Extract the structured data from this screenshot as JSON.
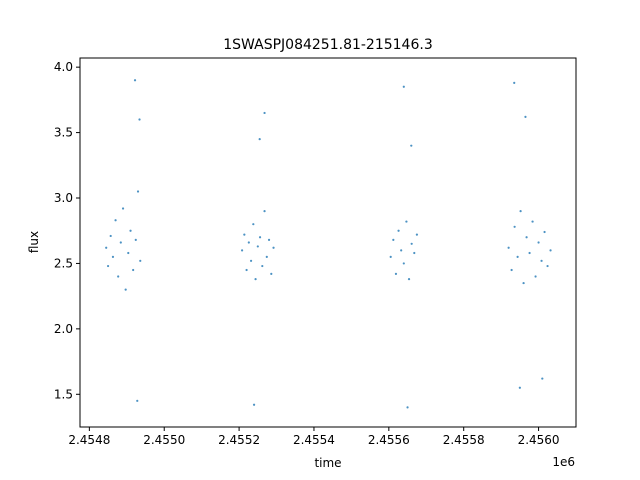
{
  "chart_data": {
    "type": "scatter",
    "title": "1SWASPJ084251.81-215146.3",
    "xlabel": "time",
    "ylabel": "flux",
    "x_offset_label": "1e6",
    "xlim": [
      2454775,
      2456100
    ],
    "ylim": [
      1.25,
      4.07
    ],
    "xticks": [
      2454800,
      2455000,
      2455200,
      2455400,
      2455600,
      2455800,
      2456000
    ],
    "xtick_labels": [
      "2.4548",
      "2.4550",
      "2.4552",
      "2.4554",
      "2.4556",
      "2.4558",
      "2.4560"
    ],
    "yticks": [
      1.5,
      2.0,
      2.5,
      3.0,
      3.5,
      4.0
    ],
    "ytick_labels": [
      "1.5",
      "2.0",
      "2.5",
      "3.0",
      "3.5",
      "4.0"
    ],
    "grid": false,
    "marker_color": "#1f77b4",
    "series": [
      {
        "x": [
          2454845,
          2454850,
          2454857,
          2454863,
          2454870,
          2454877,
          2454884,
          2454890,
          2454897,
          2454904,
          2454910,
          2454917,
          2454924,
          2454930,
          2454936,
          2454922,
          2454928,
          2454934
        ],
        "y": [
          2.62,
          2.48,
          2.71,
          2.55,
          2.83,
          2.4,
          2.66,
          2.92,
          2.3,
          2.58,
          2.75,
          2.45,
          2.68,
          3.05,
          2.52,
          3.9,
          1.45,
          3.6
        ]
      },
      {
        "x": [
          2455208,
          2455214,
          2455220,
          2455226,
          2455232,
          2455238,
          2455244,
          2455250,
          2455256,
          2455262,
          2455268,
          2455274,
          2455280,
          2455286,
          2455292,
          2455255,
          2455268,
          2455240
        ],
        "y": [
          2.6,
          2.72,
          2.45,
          2.66,
          2.52,
          2.8,
          2.38,
          2.63,
          2.7,
          2.48,
          2.9,
          2.55,
          2.68,
          2.42,
          2.62,
          3.45,
          3.65,
          1.42
        ]
      },
      {
        "x": [
          2455605,
          2455612,
          2455619,
          2455626,
          2455633,
          2455640,
          2455647,
          2455654,
          2455661,
          2455668,
          2455675,
          2455640,
          2455650,
          2455660
        ],
        "y": [
          2.55,
          2.68,
          2.42,
          2.75,
          2.6,
          2.5,
          2.82,
          2.38,
          2.65,
          2.58,
          2.72,
          3.85,
          1.4,
          3.4
        ]
      },
      {
        "x": [
          2455920,
          2455928,
          2455936,
          2455944,
          2455952,
          2455960,
          2455968,
          2455976,
          2455984,
          2455992,
          2456000,
          2456008,
          2456016,
          2456024,
          2456032,
          2455935,
          2455950,
          2455965,
          2456010
        ],
        "y": [
          2.62,
          2.45,
          2.78,
          2.55,
          2.9,
          2.35,
          2.7,
          2.58,
          2.82,
          2.4,
          2.66,
          2.52,
          2.74,
          2.48,
          2.6,
          3.88,
          1.55,
          3.62,
          1.62
        ]
      }
    ]
  }
}
